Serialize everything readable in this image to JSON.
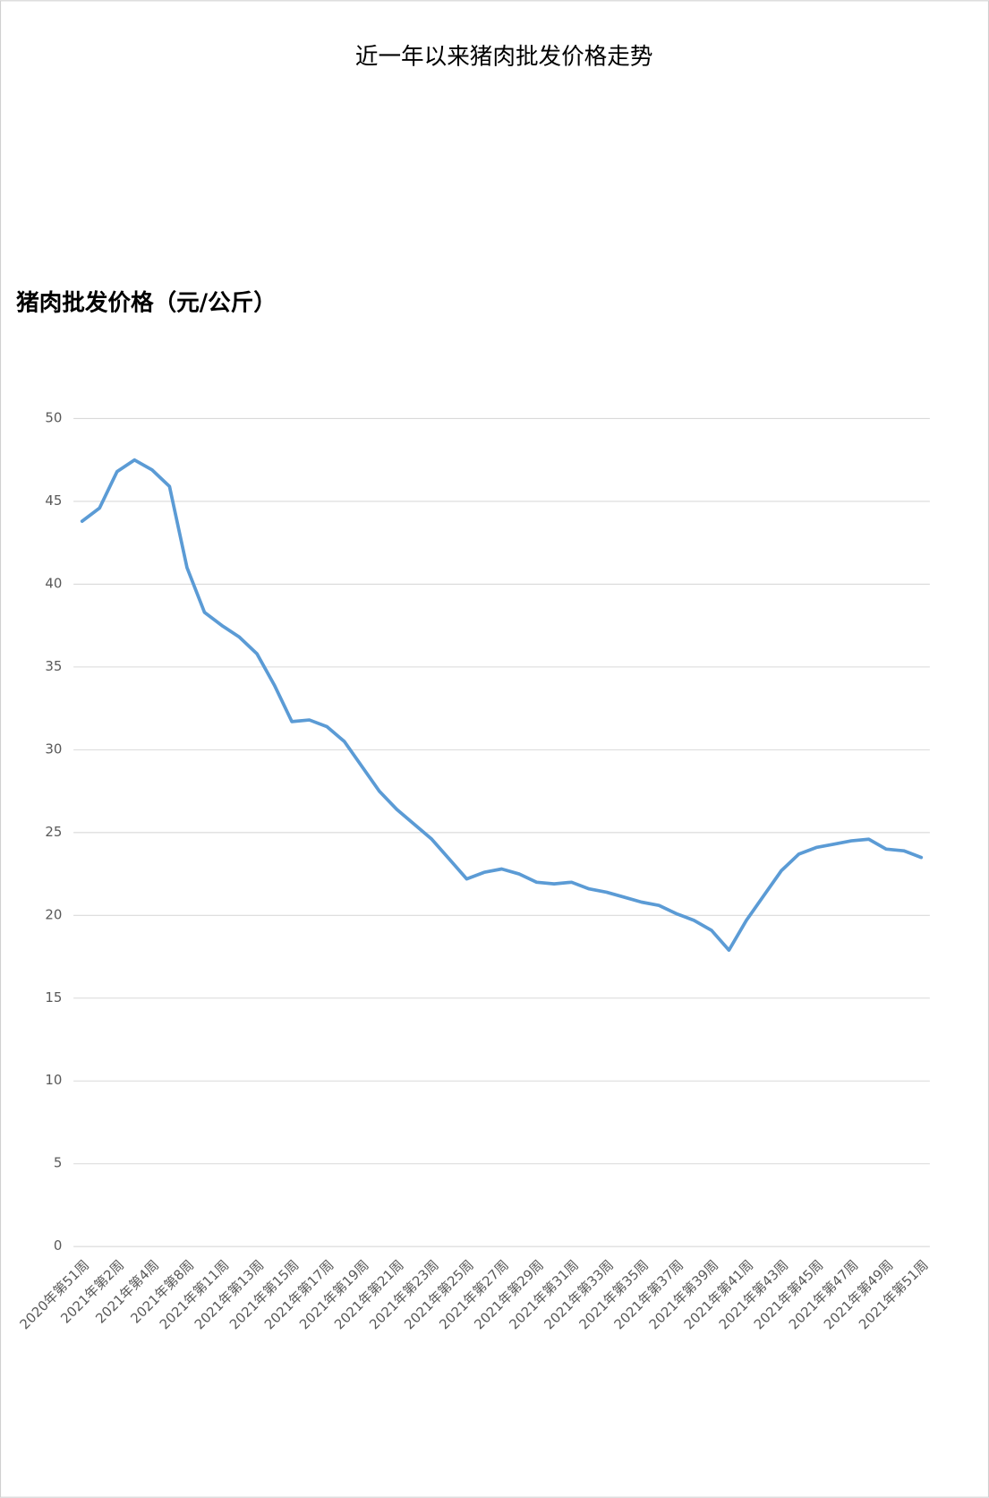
{
  "chart_data": {
    "type": "line",
    "title": "近一年以来猪肉批发价格走势",
    "y_label": "猪肉批发价格（元/公斤）",
    "categories": [
      "2020年第51周",
      null,
      "2021年第2周",
      null,
      "2021年第4周",
      null,
      "2021年第8周",
      null,
      "2021年第11周",
      null,
      "2021年第13周",
      null,
      "2021年第15周",
      null,
      "2021年第17周",
      null,
      "2021年第19周",
      null,
      "2021年第21周",
      null,
      "2021年第23周",
      null,
      "2021年第25周",
      null,
      "2021年第27周",
      null,
      "2021年第29周",
      null,
      "2021年第31周",
      null,
      "2021年第33周",
      null,
      "2021年第35周",
      null,
      "2021年第37周",
      null,
      "2021年第39周",
      null,
      "2021年第41周",
      null,
      "2021年第43周",
      null,
      "2021年第45周",
      null,
      "2021年第47周",
      null,
      "2021年第49周",
      null,
      "2021年第51周"
    ],
    "series": [
      {
        "name": "猪肉批发价格",
        "color": "#5b9bd5",
        "values": [
          43.8,
          44.6,
          46.8,
          47.5,
          46.9,
          45.9,
          41.0,
          38.3,
          37.5,
          36.8,
          35.8,
          33.9,
          31.7,
          31.8,
          31.4,
          30.5,
          29.0,
          27.5,
          26.4,
          25.5,
          24.6,
          23.4,
          22.2,
          22.6,
          22.8,
          22.5,
          22.0,
          21.9,
          22.0,
          21.6,
          21.4,
          21.1,
          20.8,
          20.6,
          20.1,
          19.7,
          19.1,
          17.9,
          19.7,
          21.2,
          22.7,
          23.7,
          24.1,
          24.3,
          24.5,
          24.6,
          24.0,
          23.9,
          23.5
        ]
      }
    ],
    "ylim": [
      0,
      50
    ],
    "yticks": [
      0,
      5,
      10,
      15,
      20,
      25,
      30,
      35,
      40,
      45,
      50
    ],
    "grid": true
  }
}
